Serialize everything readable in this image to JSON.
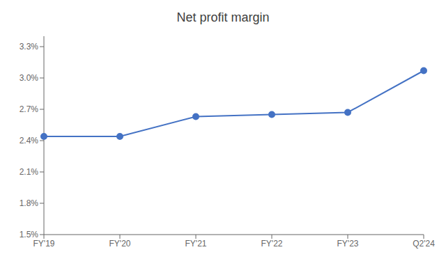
{
  "chart_data": {
    "type": "line",
    "title": "Net profit margin",
    "categories": [
      "FY'19",
      "FY'20",
      "FY'21",
      "FY'22",
      "FY'23",
      "Q2'24"
    ],
    "values": [
      0.0244,
      0.0244,
      0.0263,
      0.0265,
      0.0267,
      0.0307
    ],
    "color": "#4472C4",
    "marker": "circle",
    "ylim": [
      0.015,
      0.034
    ],
    "yticks": [
      {
        "value": 0.015,
        "label": "1.5%"
      },
      {
        "value": 0.018,
        "label": "1.8%"
      },
      {
        "value": 0.021,
        "label": "2.1%"
      },
      {
        "value": 0.024,
        "label": "2.4%"
      },
      {
        "value": 0.027,
        "label": "2.7%"
      },
      {
        "value": 0.03,
        "label": "3.0%"
      },
      {
        "value": 0.033,
        "label": "3.3%"
      }
    ],
    "grid": false
  }
}
